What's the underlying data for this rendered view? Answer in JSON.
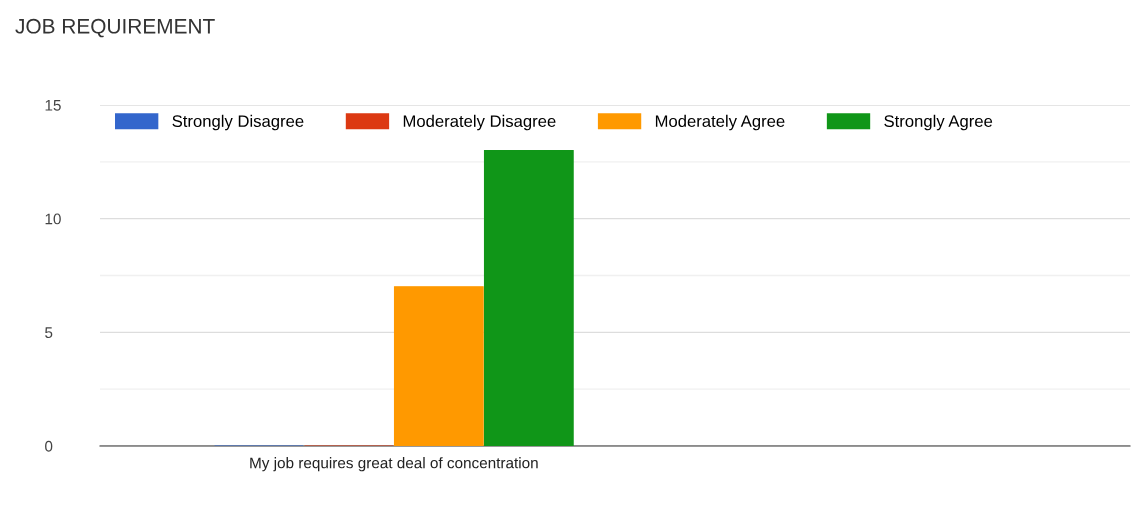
{
  "chart_data": {
    "type": "bar",
    "title": "JOB REQUIREMENT",
    "categories": [
      "My job requires great deal of concentration"
    ],
    "series": [
      {
        "name": "Strongly Disagree",
        "color": "#3366cc",
        "values": [
          0
        ]
      },
      {
        "name": "Moderately Disagree",
        "color": "#dc3912",
        "values": [
          0
        ]
      },
      {
        "name": "Moderately Agree",
        "color": "#ff9900",
        "values": [
          7
        ]
      },
      {
        "name": "Strongly Agree",
        "color": "#109618",
        "values": [
          13
        ]
      }
    ],
    "ylim": [
      0,
      15
    ],
    "yticks": [
      0,
      5,
      10,
      15
    ],
    "grid": "y",
    "legend": "top"
  }
}
